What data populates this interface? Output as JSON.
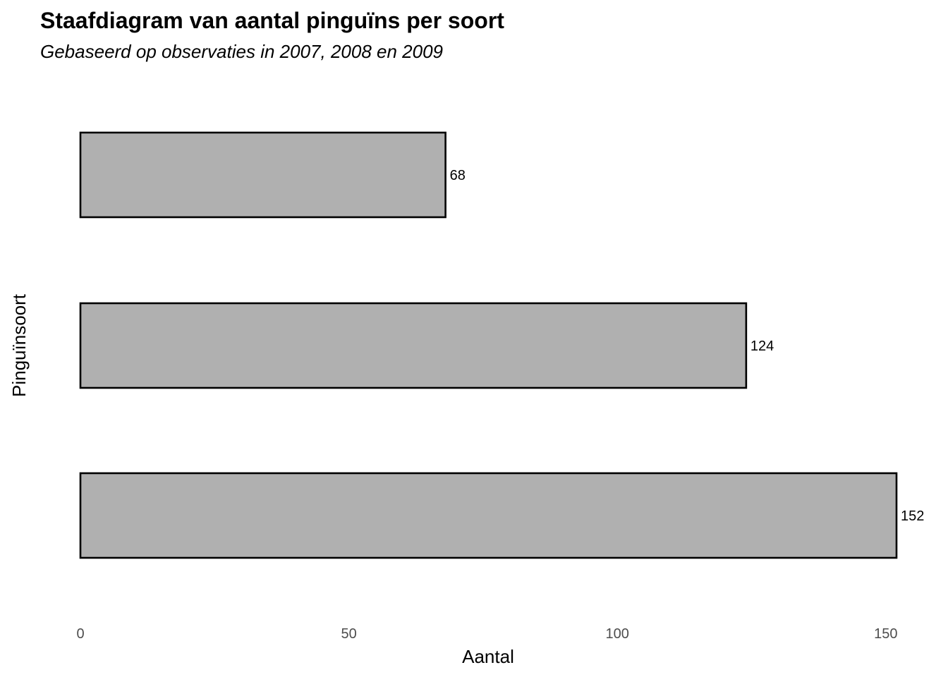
{
  "chart_data": {
    "type": "bar",
    "orientation": "horizontal",
    "title": "Staafdiagram van aantal pinguïns per soort",
    "subtitle": "Gebaseerd op observaties in 2007, 2008 en 2009",
    "xlabel": "Aantal",
    "ylabel": "Pinguïnsoort",
    "values": [
      68,
      124,
      152
    ],
    "data_labels": [
      "68",
      "124",
      "152"
    ],
    "xlim": [
      0,
      152
    ],
    "xticks": [
      0,
      50,
      100,
      150
    ],
    "xtick_labels": [
      "0",
      "50",
      "100",
      "150"
    ],
    "grid": false,
    "legend": "none",
    "colors": {
      "bar_fill": "#b0b0b0",
      "bar_stroke": "#000000"
    }
  }
}
